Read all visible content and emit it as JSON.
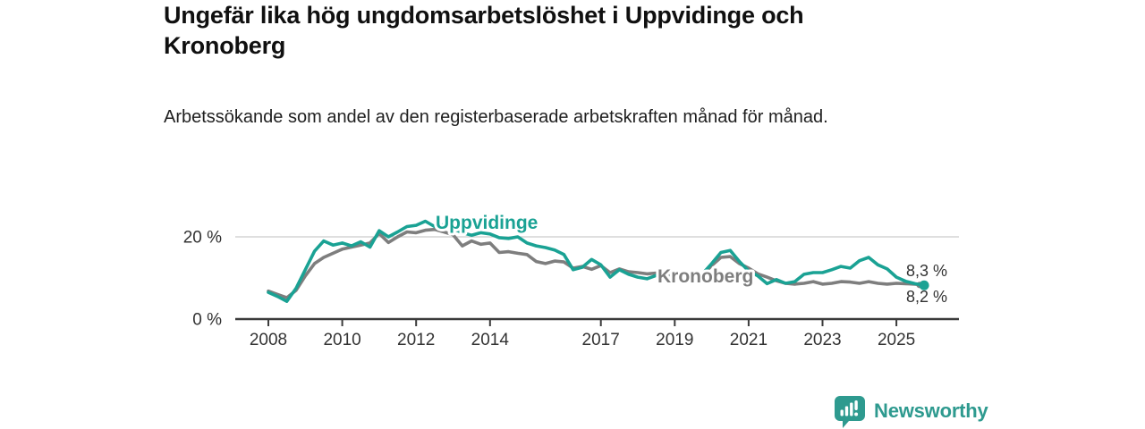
{
  "title": "Ungefär lika hög ungdomsarbetslöshet i Uppvidinge och Kronoberg",
  "subtitle": "Arbetssökande som andel av den registerbaserade arbetskraften månad för månad.",
  "branding": {
    "logo_text": "Newsworthy",
    "brand_color": "#2e9a8f"
  },
  "colors": {
    "uppvidinge_teal": "#1aa294",
    "kronoberg_gray": "#7e7e7e",
    "gridline": "#cccccc",
    "axis": "#3b3b3b",
    "tick_text": "#333333"
  },
  "chart_data": {
    "type": "line",
    "unit": "%",
    "x": {
      "start": 2008,
      "step": 0.25
    },
    "ylim": [
      0,
      26
    ],
    "yticks": [
      {
        "value": 0,
        "label": "0 %"
      },
      {
        "value": 20,
        "label": "20 %"
      }
    ],
    "xticks": [
      {
        "year": 2008,
        "label": "2008"
      },
      {
        "year": 2010,
        "label": "2010"
      },
      {
        "year": 2012,
        "label": "2012"
      },
      {
        "year": 2014,
        "label": "2014"
      },
      {
        "year": 2017,
        "label": "2017"
      },
      {
        "year": 2019,
        "label": "2019"
      },
      {
        "year": 2021,
        "label": "2021"
      },
      {
        "year": 2023,
        "label": "2023"
      },
      {
        "year": 2025,
        "label": "2025"
      }
    ],
    "series": [
      {
        "name": "Uppvidinge",
        "color": "#1aa294",
        "end_label": "8,2 %",
        "end_value": 8.2,
        "values": [
          6.5,
          5.5,
          4.3,
          7.5,
          12.0,
          16.5,
          19.0,
          18.0,
          18.5,
          17.8,
          18.8,
          17.5,
          21.5,
          20.0,
          21.2,
          22.5,
          22.8,
          23.8,
          22.5,
          23.0,
          22.0,
          21.0,
          20.4,
          21.0,
          20.7,
          19.8,
          19.6,
          20.0,
          18.5,
          17.8,
          17.4,
          16.8,
          15.7,
          12.0,
          12.6,
          14.5,
          13.2,
          10.2,
          12.0,
          10.9,
          10.2,
          9.8,
          10.6,
          10.0,
          10.2,
          9.9,
          10.4,
          11.0,
          13.5,
          16.2,
          16.7,
          14.0,
          11.7,
          10.5,
          8.6,
          9.6,
          8.7,
          9.1,
          10.9,
          11.3,
          11.3,
          12.0,
          12.8,
          12.4,
          14.2,
          15.0,
          13.2,
          12.2,
          10.2,
          9.2,
          8.6,
          8.2
        ]
      },
      {
        "name": "Kronoberg",
        "color": "#7e7e7e",
        "end_label": "8,3 %",
        "end_value": 8.3,
        "values": [
          6.8,
          6.0,
          5.2,
          7.0,
          10.5,
          13.5,
          15.0,
          16.0,
          17.0,
          17.5,
          18.0,
          18.5,
          20.8,
          18.6,
          20.0,
          21.2,
          21.0,
          21.6,
          21.8,
          21.2,
          20.5,
          17.8,
          19.0,
          18.2,
          18.5,
          16.2,
          16.4,
          16.0,
          15.7,
          14.0,
          13.5,
          14.1,
          13.9,
          12.4,
          12.8,
          12.1,
          13.0,
          11.3,
          12.2,
          11.5,
          11.3,
          11.0,
          11.2,
          10.8,
          10.9,
          10.5,
          10.2,
          10.8,
          13.0,
          15.0,
          15.2,
          13.5,
          12.4,
          11.0,
          10.2,
          9.3,
          8.7,
          8.5,
          8.7,
          9.1,
          8.5,
          8.7,
          9.1,
          9.0,
          8.7,
          9.1,
          8.7,
          8.5,
          8.7,
          8.6,
          8.5,
          8.3
        ]
      }
    ],
    "legend_position": "inline-labels-on-lines"
  }
}
